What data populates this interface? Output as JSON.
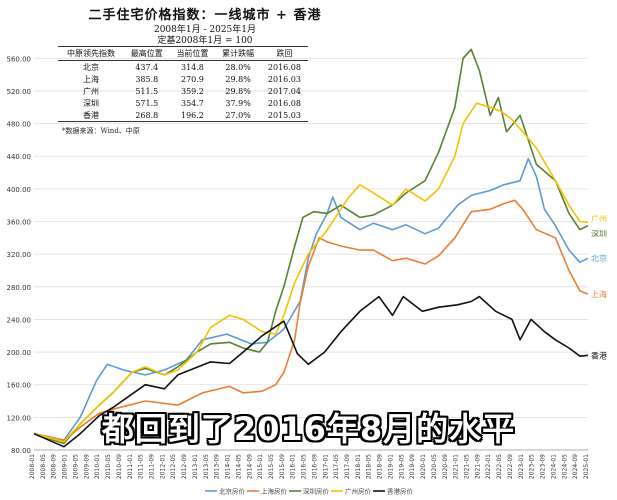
{
  "header": {
    "title": "二手住宅价格指数：一线城市 + 香港",
    "period": "2008年1月 - 2025年1月",
    "base": "定基2008年1月 = 100"
  },
  "summary_table": {
    "headers": [
      "中原领先指数",
      "最高位置",
      "当前位置",
      "累计跌幅",
      "跌回"
    ],
    "rows": [
      [
        "北京",
        "437.4",
        "314.8",
        "28.0%",
        "2016.08"
      ],
      [
        "上海",
        "385.8",
        "270.9",
        "29.8%",
        "2016.03"
      ],
      [
        "广州",
        "511.5",
        "359.2",
        "29.8%",
        "2017.04"
      ],
      [
        "深圳",
        "571.5",
        "354.7",
        "37.9%",
        "2016.08"
      ],
      [
        "香港",
        "268.8",
        "196.2",
        "27.0%",
        "2015.03"
      ]
    ]
  },
  "source": "*数据来源：Wind、中原",
  "subtitle": "都回到了2016年8月的水平",
  "colors": {
    "beijing": "#5b9bd5",
    "shanghai": "#ed7d31",
    "shenzhen": "#548235",
    "guangzhou": "#f5c200",
    "hongkong": "#111111",
    "grid": "#dddddd",
    "axis_text": "#333333"
  },
  "chart_data": {
    "type": "line",
    "ylim": [
      80,
      580
    ],
    "yticks": [
      "80.00",
      "120.00",
      "160.00",
      "200.00",
      "240.00",
      "280.00",
      "320.00",
      "360.00",
      "400.00",
      "440.00",
      "480.00",
      "520.00",
      "560.00"
    ],
    "xticks": [
      "2008-01",
      "2008-05",
      "2008-09",
      "2009-01",
      "2009-05",
      "2009-09",
      "2010-01",
      "2010-05",
      "2010-09",
      "2011-01",
      "2011-05",
      "2011-09",
      "2012-01",
      "2012-05",
      "2012-09",
      "2013-01",
      "2013-05",
      "2013-09",
      "2014-01",
      "2014-05",
      "2014-09",
      "2015-01",
      "2015-05",
      "2015-09",
      "2016-01",
      "2016-05",
      "2016-09",
      "2017-01",
      "2017-05",
      "2017-09",
      "2018-01",
      "2018-05",
      "2018-09",
      "2019-01",
      "2019-05",
      "2019-09",
      "2020-01",
      "2020-05",
      "2020-09",
      "2021-01",
      "2021-05",
      "2021-09",
      "2022-01",
      "2022-05",
      "2022-09",
      "2023-01",
      "2023-05",
      "2023-09",
      "2024-01",
      "2024-05",
      "2024-09",
      "2025-01"
    ],
    "x_start": "2008-01",
    "x_end": "2025-01",
    "legend_position": "bottom",
    "series": [
      {
        "name": "北京房价",
        "label": "北京",
        "color": "#5b9bd5",
        "points": [
          [
            "2008-01",
            100
          ],
          [
            "2008-12",
            92
          ],
          [
            "2009-06",
            120
          ],
          [
            "2009-12",
            165
          ],
          [
            "2010-04",
            185
          ],
          [
            "2010-10",
            178
          ],
          [
            "2011-06",
            172
          ],
          [
            "2012-01",
            178
          ],
          [
            "2012-09",
            190
          ],
          [
            "2013-03",
            215
          ],
          [
            "2013-12",
            222
          ],
          [
            "2014-09",
            210
          ],
          [
            "2015-03",
            212
          ],
          [
            "2015-09",
            228
          ],
          [
            "2016-03",
            262
          ],
          [
            "2016-06",
            315
          ],
          [
            "2016-09",
            345
          ],
          [
            "2017-01",
            370
          ],
          [
            "2017-03",
            390
          ],
          [
            "2017-06",
            365
          ],
          [
            "2018-01",
            350
          ],
          [
            "2018-06",
            358
          ],
          [
            "2019-01",
            350
          ],
          [
            "2019-06",
            356
          ],
          [
            "2020-01",
            345
          ],
          [
            "2020-06",
            352
          ],
          [
            "2021-01",
            380
          ],
          [
            "2021-06",
            392
          ],
          [
            "2022-01",
            398
          ],
          [
            "2022-06",
            405
          ],
          [
            "2022-12",
            410
          ],
          [
            "2023-03",
            437
          ],
          [
            "2023-06",
            415
          ],
          [
            "2023-09",
            375
          ],
          [
            "2024-01",
            355
          ],
          [
            "2024-06",
            325
          ],
          [
            "2024-10",
            310
          ],
          [
            "2025-01",
            315
          ]
        ]
      },
      {
        "name": "上海房价",
        "label": "上海",
        "color": "#ed7d31",
        "points": [
          [
            "2008-01",
            100
          ],
          [
            "2008-12",
            92
          ],
          [
            "2009-06",
            108
          ],
          [
            "2010-01",
            125
          ],
          [
            "2010-06",
            130
          ],
          [
            "2011-06",
            140
          ],
          [
            "2012-06",
            135
          ],
          [
            "2013-03",
            150
          ],
          [
            "2014-01",
            158
          ],
          [
            "2014-06",
            150
          ],
          [
            "2015-01",
            152
          ],
          [
            "2015-06",
            160
          ],
          [
            "2015-09",
            175
          ],
          [
            "2016-01",
            215
          ],
          [
            "2016-03",
            260
          ],
          [
            "2016-06",
            305
          ],
          [
            "2016-10",
            340
          ],
          [
            "2017-01",
            335
          ],
          [
            "2017-06",
            330
          ],
          [
            "2018-01",
            325
          ],
          [
            "2018-06",
            325
          ],
          [
            "2019-01",
            312
          ],
          [
            "2019-06",
            315
          ],
          [
            "2020-01",
            308
          ],
          [
            "2020-06",
            318
          ],
          [
            "2020-12",
            340
          ],
          [
            "2021-06",
            372
          ],
          [
            "2022-01",
            375
          ],
          [
            "2022-06",
            382
          ],
          [
            "2022-10",
            386
          ],
          [
            "2023-01",
            375
          ],
          [
            "2023-06",
            350
          ],
          [
            "2024-01",
            340
          ],
          [
            "2024-06",
            300
          ],
          [
            "2024-10",
            275
          ],
          [
            "2025-01",
            271
          ]
        ]
      },
      {
        "name": "深圳房价",
        "label": "深圳",
        "color": "#548235",
        "points": [
          [
            "2008-01",
            100
          ],
          [
            "2008-12",
            88
          ],
          [
            "2009-06",
            112
          ],
          [
            "2010-01",
            135
          ],
          [
            "2010-06",
            150
          ],
          [
            "2011-01",
            175
          ],
          [
            "2011-06",
            180
          ],
          [
            "2012-01",
            172
          ],
          [
            "2012-06",
            182
          ],
          [
            "2013-01",
            200
          ],
          [
            "2013-06",
            210
          ],
          [
            "2014-01",
            212
          ],
          [
            "2014-06",
            205
          ],
          [
            "2014-12",
            200
          ],
          [
            "2015-03",
            212
          ],
          [
            "2015-06",
            250
          ],
          [
            "2015-09",
            280
          ],
          [
            "2016-01",
            330
          ],
          [
            "2016-04",
            365
          ],
          [
            "2016-08",
            372
          ],
          [
            "2017-01",
            370
          ],
          [
            "2017-06",
            380
          ],
          [
            "2018-01",
            365
          ],
          [
            "2018-06",
            368
          ],
          [
            "2019-01",
            380
          ],
          [
            "2019-06",
            395
          ],
          [
            "2020-01",
            410
          ],
          [
            "2020-06",
            445
          ],
          [
            "2020-12",
            500
          ],
          [
            "2021-03",
            560
          ],
          [
            "2021-06",
            571
          ],
          [
            "2021-09",
            545
          ],
          [
            "2022-01",
            490
          ],
          [
            "2022-04",
            512
          ],
          [
            "2022-07",
            470
          ],
          [
            "2022-12",
            490
          ],
          [
            "2023-03",
            460
          ],
          [
            "2023-06",
            430
          ],
          [
            "2024-01",
            410
          ],
          [
            "2024-06",
            370
          ],
          [
            "2024-10",
            350
          ],
          [
            "2025-01",
            355
          ]
        ]
      },
      {
        "name": "广州房价",
        "label": "广州",
        "color": "#f5c200",
        "points": [
          [
            "2008-01",
            100
          ],
          [
            "2008-12",
            90
          ],
          [
            "2009-06",
            112
          ],
          [
            "2010-01",
            135
          ],
          [
            "2010-06",
            150
          ],
          [
            "2011-01",
            175
          ],
          [
            "2011-06",
            182
          ],
          [
            "2012-01",
            172
          ],
          [
            "2012-06",
            178
          ],
          [
            "2013-01",
            200
          ],
          [
            "2013-06",
            230
          ],
          [
            "2014-01",
            245
          ],
          [
            "2014-06",
            240
          ],
          [
            "2015-01",
            225
          ],
          [
            "2015-06",
            222
          ],
          [
            "2015-09",
            245
          ],
          [
            "2016-01",
            285
          ],
          [
            "2016-06",
            320
          ],
          [
            "2017-01",
            350
          ],
          [
            "2017-04",
            365
          ],
          [
            "2017-09",
            390
          ],
          [
            "2018-01",
            405
          ],
          [
            "2018-06",
            395
          ],
          [
            "2019-01",
            380
          ],
          [
            "2019-06",
            400
          ],
          [
            "2020-01",
            385
          ],
          [
            "2020-06",
            400
          ],
          [
            "2020-12",
            440
          ],
          [
            "2021-03",
            480
          ],
          [
            "2021-08",
            505
          ],
          [
            "2022-01",
            500
          ],
          [
            "2022-05",
            495
          ],
          [
            "2022-09",
            485
          ],
          [
            "2023-01",
            470
          ],
          [
            "2023-06",
            450
          ],
          [
            "2024-01",
            410
          ],
          [
            "2024-06",
            380
          ],
          [
            "2024-10",
            360
          ],
          [
            "2025-01",
            359
          ]
        ]
      },
      {
        "name": "香港房价",
        "label": "香港",
        "color": "#111111",
        "points": [
          [
            "2008-01",
            100
          ],
          [
            "2008-12",
            84
          ],
          [
            "2009-06",
            100
          ],
          [
            "2010-01",
            122
          ],
          [
            "2010-06",
            132
          ],
          [
            "2011-06",
            160
          ],
          [
            "2012-01",
            155
          ],
          [
            "2012-06",
            172
          ],
          [
            "2013-06",
            188
          ],
          [
            "2014-01",
            186
          ],
          [
            "2014-06",
            200
          ],
          [
            "2015-01",
            220
          ],
          [
            "2015-09",
            238
          ],
          [
            "2016-02",
            198
          ],
          [
            "2016-06",
            185
          ],
          [
            "2016-12",
            200
          ],
          [
            "2017-06",
            225
          ],
          [
            "2018-01",
            250
          ],
          [
            "2018-08",
            268
          ],
          [
            "2019-01",
            245
          ],
          [
            "2019-05",
            268
          ],
          [
            "2019-12",
            250
          ],
          [
            "2020-06",
            255
          ],
          [
            "2021-01",
            258
          ],
          [
            "2021-06",
            262
          ],
          [
            "2021-09",
            268
          ],
          [
            "2022-03",
            250
          ],
          [
            "2022-09",
            240
          ],
          [
            "2022-12",
            215
          ],
          [
            "2023-04",
            240
          ],
          [
            "2023-09",
            225
          ],
          [
            "2024-01",
            215
          ],
          [
            "2024-06",
            205
          ],
          [
            "2024-10",
            195
          ],
          [
            "2025-01",
            196
          ]
        ]
      }
    ],
    "end_labels": [
      "广州",
      "深圳",
      "北京",
      "上海",
      "香港"
    ]
  }
}
